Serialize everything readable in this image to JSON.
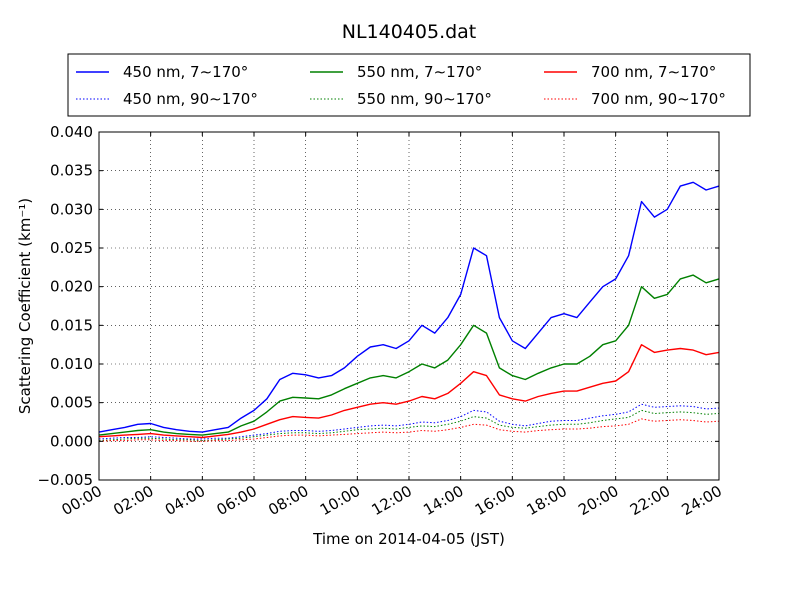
{
  "chart_data": {
    "type": "line",
    "title": "NL140405.dat",
    "xlabel": "Time on 2014-04-05 (JST)",
    "ylabel": "Scattering Coefficient (km⁻¹)",
    "xlim": [
      "00:00",
      "24:00"
    ],
    "ylim": [
      -0.005,
      0.04
    ],
    "x_ticks": [
      "00:00",
      "02:00",
      "04:00",
      "06:00",
      "08:00",
      "10:00",
      "12:00",
      "14:00",
      "16:00",
      "18:00",
      "20:00",
      "22:00",
      "24:00"
    ],
    "y_ticks": [
      "−0.005",
      "0.000",
      "0.005",
      "0.010",
      "0.015",
      "0.020",
      "0.025",
      "0.030",
      "0.035",
      "0.040"
    ],
    "grid": true,
    "legend_position": "top, above plot, 3 columns",
    "x_hours": [
      0,
      0.5,
      1,
      1.5,
      2,
      2.5,
      3,
      3.5,
      4,
      4.5,
      5,
      5.5,
      6,
      6.5,
      7,
      7.5,
      8,
      8.5,
      9,
      9.5,
      10,
      10.5,
      11,
      11.5,
      12,
      12.5,
      13,
      13.5,
      14,
      14.5,
      15,
      15.5,
      16,
      16.5,
      17,
      17.5,
      18,
      18.5,
      19,
      19.5,
      20,
      20.5,
      21,
      21.5,
      22,
      22.5,
      23,
      23.5,
      24
    ],
    "series": [
      {
        "name": "450 nm, 7∼170°",
        "color": "#0000ff",
        "style": "solid",
        "values": [
          0.0012,
          0.0015,
          0.0018,
          0.0022,
          0.0023,
          0.0018,
          0.0015,
          0.0013,
          0.0012,
          0.0015,
          0.0018,
          0.003,
          0.004,
          0.0055,
          0.008,
          0.0088,
          0.0086,
          0.0082,
          0.0085,
          0.0095,
          0.011,
          0.0122,
          0.0125,
          0.012,
          0.013,
          0.015,
          0.014,
          0.016,
          0.019,
          0.025,
          0.024,
          0.016,
          0.013,
          0.012,
          0.014,
          0.016,
          0.0165,
          0.016,
          0.018,
          0.02,
          0.021,
          0.024,
          0.031,
          0.029,
          0.03,
          0.033,
          0.0335,
          0.0325,
          0.033
        ]
      },
      {
        "name": "550 nm, 7∼170°",
        "color": "#008000",
        "style": "solid",
        "values": [
          0.0008,
          0.001,
          0.0012,
          0.0014,
          0.0015,
          0.0012,
          0.001,
          0.0009,
          0.0008,
          0.001,
          0.0012,
          0.002,
          0.0026,
          0.0038,
          0.0052,
          0.0057,
          0.0056,
          0.0055,
          0.006,
          0.0068,
          0.0075,
          0.0082,
          0.0085,
          0.0082,
          0.009,
          0.01,
          0.0095,
          0.0105,
          0.0125,
          0.015,
          0.014,
          0.0095,
          0.0085,
          0.008,
          0.0088,
          0.0095,
          0.01,
          0.01,
          0.011,
          0.0125,
          0.013,
          0.015,
          0.02,
          0.0185,
          0.019,
          0.021,
          0.0215,
          0.0205,
          0.021
        ]
      },
      {
        "name": "700 nm, 7∼170°",
        "color": "#ff0000",
        "style": "solid",
        "values": [
          0.0006,
          0.0007,
          0.0008,
          0.0009,
          0.001,
          0.0008,
          0.0007,
          0.0006,
          0.0005,
          0.0007,
          0.0009,
          0.0012,
          0.0016,
          0.0022,
          0.0028,
          0.0032,
          0.0031,
          0.003,
          0.0034,
          0.004,
          0.0044,
          0.0048,
          0.005,
          0.0048,
          0.0052,
          0.0058,
          0.0055,
          0.0062,
          0.0075,
          0.009,
          0.0085,
          0.006,
          0.0055,
          0.0052,
          0.0058,
          0.0062,
          0.0065,
          0.0065,
          0.007,
          0.0075,
          0.0078,
          0.009,
          0.0125,
          0.0115,
          0.0118,
          0.012,
          0.0118,
          0.0112,
          0.0115
        ]
      },
      {
        "name": "450 nm, 90∼170°",
        "color": "#0000ff",
        "style": "dotted",
        "values": [
          0.0003,
          0.0004,
          0.0005,
          0.0005,
          0.0006,
          0.0005,
          0.0004,
          0.0003,
          0.0003,
          0.0004,
          0.0004,
          0.0006,
          0.0008,
          0.001,
          0.0013,
          0.0014,
          0.0014,
          0.0013,
          0.0014,
          0.0016,
          0.0018,
          0.002,
          0.0021,
          0.002,
          0.0022,
          0.0025,
          0.0024,
          0.0027,
          0.0032,
          0.004,
          0.0038,
          0.0026,
          0.0022,
          0.002,
          0.0023,
          0.0026,
          0.0027,
          0.0027,
          0.003,
          0.0033,
          0.0035,
          0.0038,
          0.0048,
          0.0044,
          0.0045,
          0.0046,
          0.0045,
          0.0042,
          0.0043
        ]
      },
      {
        "name": "550 nm, 90∼170°",
        "color": "#008000",
        "style": "dotted",
        "values": [
          0.0001,
          0.0002,
          0.0003,
          0.0004,
          0.0004,
          0.0003,
          0.0002,
          0.0002,
          0.0001,
          0.0002,
          0.0003,
          0.0004,
          0.0006,
          0.0008,
          0.001,
          0.0011,
          0.0011,
          0.001,
          0.0011,
          0.0013,
          0.0015,
          0.0016,
          0.0017,
          0.0016,
          0.0018,
          0.002,
          0.0019,
          0.0022,
          0.0026,
          0.0032,
          0.003,
          0.0021,
          0.0018,
          0.0017,
          0.0019,
          0.0021,
          0.0022,
          0.0022,
          0.0024,
          0.0027,
          0.0029,
          0.0031,
          0.004,
          0.0036,
          0.0037,
          0.0038,
          0.0037,
          0.0035,
          0.0036
        ]
      },
      {
        "name": "700 nm, 90∼170°",
        "color": "#ff0000",
        "style": "dotted",
        "values": [
          0.0,
          0.0001,
          0.0001,
          0.0002,
          0.0002,
          0.0001,
          0.0001,
          0.0,
          0.0,
          0.0001,
          0.0001,
          0.0002,
          0.0003,
          0.0005,
          0.0007,
          0.0008,
          0.0008,
          0.0007,
          0.0008,
          0.0009,
          0.001,
          0.0011,
          0.0012,
          0.0011,
          0.0012,
          0.0014,
          0.0013,
          0.0015,
          0.0018,
          0.0022,
          0.0021,
          0.0015,
          0.0013,
          0.0012,
          0.0014,
          0.0015,
          0.0016,
          0.0016,
          0.0017,
          0.0019,
          0.002,
          0.0022,
          0.0029,
          0.0026,
          0.0027,
          0.0028,
          0.0027,
          0.0025,
          0.0026
        ]
      }
    ]
  }
}
